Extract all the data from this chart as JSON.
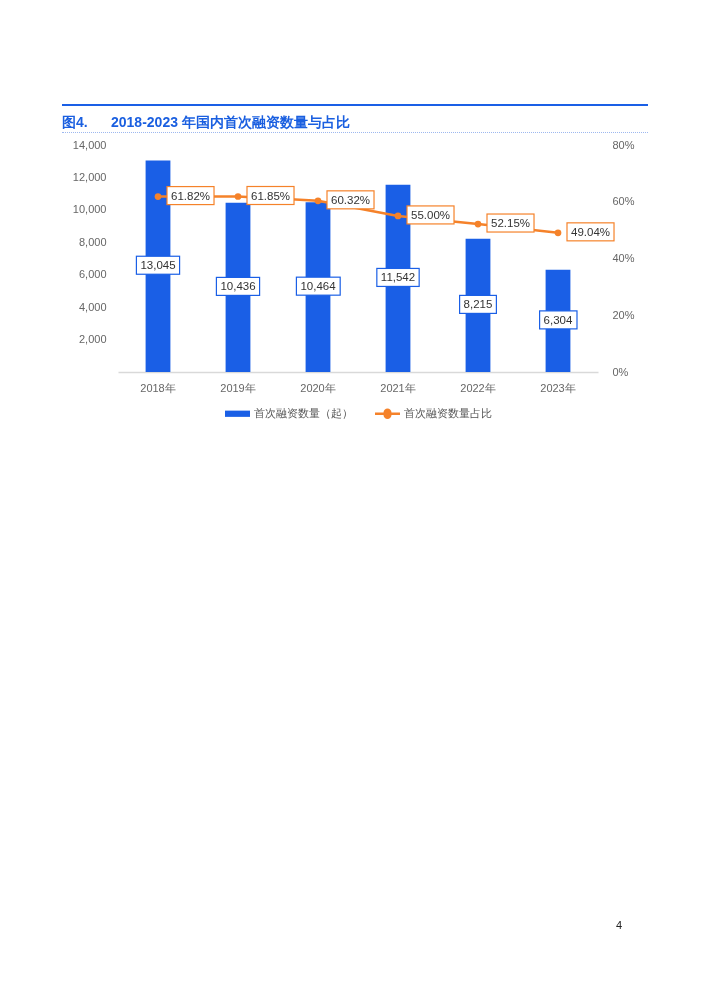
{
  "chart_data": {
    "type": "bar",
    "title": "图4.      2018-2023 年国内首次融资数量与占比",
    "categories": [
      "2018年",
      "2019年",
      "2020年",
      "2021年",
      "2022年",
      "2023年"
    ],
    "series": [
      {
        "name": "首次融资数量（起）",
        "type": "bar",
        "color": "#1a5fe6",
        "values": [
          13045,
          10436,
          10464,
          11542,
          8215,
          6304
        ],
        "value_labels": [
          "13,045",
          "10,436",
          "10,464",
          "11,542",
          "8,215",
          "6,304"
        ]
      },
      {
        "name": "首次融资数量占比",
        "type": "line",
        "axis": "y2",
        "color": "#f5822a",
        "values": [
          61.82,
          61.85,
          60.32,
          55.0,
          52.15,
          49.04
        ],
        "value_labels": [
          "61.82%",
          "61.85%",
          "60.32%",
          "55.00%",
          "52.15%",
          "49.04%"
        ]
      }
    ],
    "ylim": [
      0,
      14000
    ],
    "yticks": [
      {
        "value": 2000,
        "label": "2,000"
      },
      {
        "value": 4000,
        "label": "4,000"
      },
      {
        "value": 6000,
        "label": "6,000"
      },
      {
        "value": 8000,
        "label": "8,000"
      },
      {
        "value": 10000,
        "label": "10,000"
      },
      {
        "value": 12000,
        "label": "12,000"
      },
      {
        "value": 14000,
        "label": "14,000"
      }
    ],
    "y2lim": [
      0,
      80
    ],
    "y2ticks": [
      {
        "value": 0,
        "label": "0%"
      },
      {
        "value": 20,
        "label": "20%"
      },
      {
        "value": 40,
        "label": "40%"
      },
      {
        "value": 60,
        "label": "60%"
      },
      {
        "value": 80,
        "label": "80%"
      }
    ],
    "legend": "bottom",
    "marker": "circle",
    "line_style": "solid",
    "annotations": [
      "4"
    ]
  }
}
